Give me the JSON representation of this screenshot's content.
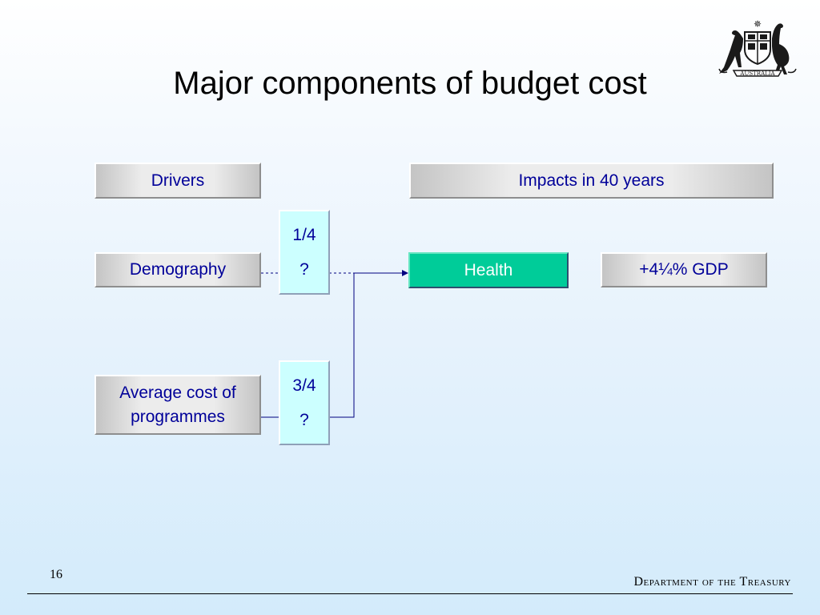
{
  "slide": {
    "title": "Major components of budget cost",
    "page_number": "16",
    "footer": "Department of the Treasury",
    "crest_text": "AUSTRALIA"
  },
  "diagram": {
    "headers": {
      "drivers": "Drivers",
      "impacts": "Impacts in 40 years"
    },
    "drivers": [
      {
        "label": "Demography"
      },
      {
        "label": "Average cost of programmes"
      }
    ],
    "shares": [
      {
        "fraction": "1/4",
        "note": "?"
      },
      {
        "fraction": "3/4",
        "note": "?"
      }
    ],
    "impact": {
      "label": "Health",
      "result": "+4¼% GDP"
    }
  },
  "colors": {
    "box_text": "#000099",
    "impact_fill": "#00cc99",
    "share_fill": "#ccffff",
    "connector": "#000080"
  }
}
